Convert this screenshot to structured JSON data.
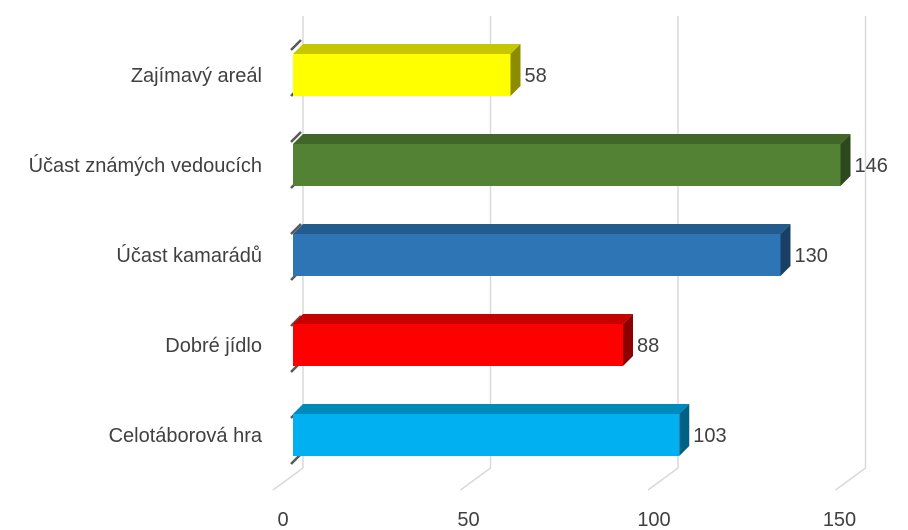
{
  "chart_data": {
    "type": "bar",
    "orientation": "horizontal",
    "title": "",
    "xlabel": "",
    "ylabel": "",
    "xlim": [
      0,
      150
    ],
    "ticks": [
      "0",
      "50",
      "100",
      "150"
    ],
    "categories": [
      "Zajímavý areál",
      "Účast známých vedoucích",
      "Účast kamarádů",
      "Dobré jídlo",
      "Celotáborová hra"
    ],
    "values": [
      58,
      146,
      130,
      88,
      103
    ],
    "data_labels": [
      "58",
      "146",
      "130",
      "88",
      "103"
    ],
    "colors": [
      "#ffff00",
      "#548235",
      "#2e75b6",
      "#ff0000",
      "#00b0f0"
    ],
    "legend": "none",
    "grid": true,
    "style": "3d-bar"
  }
}
